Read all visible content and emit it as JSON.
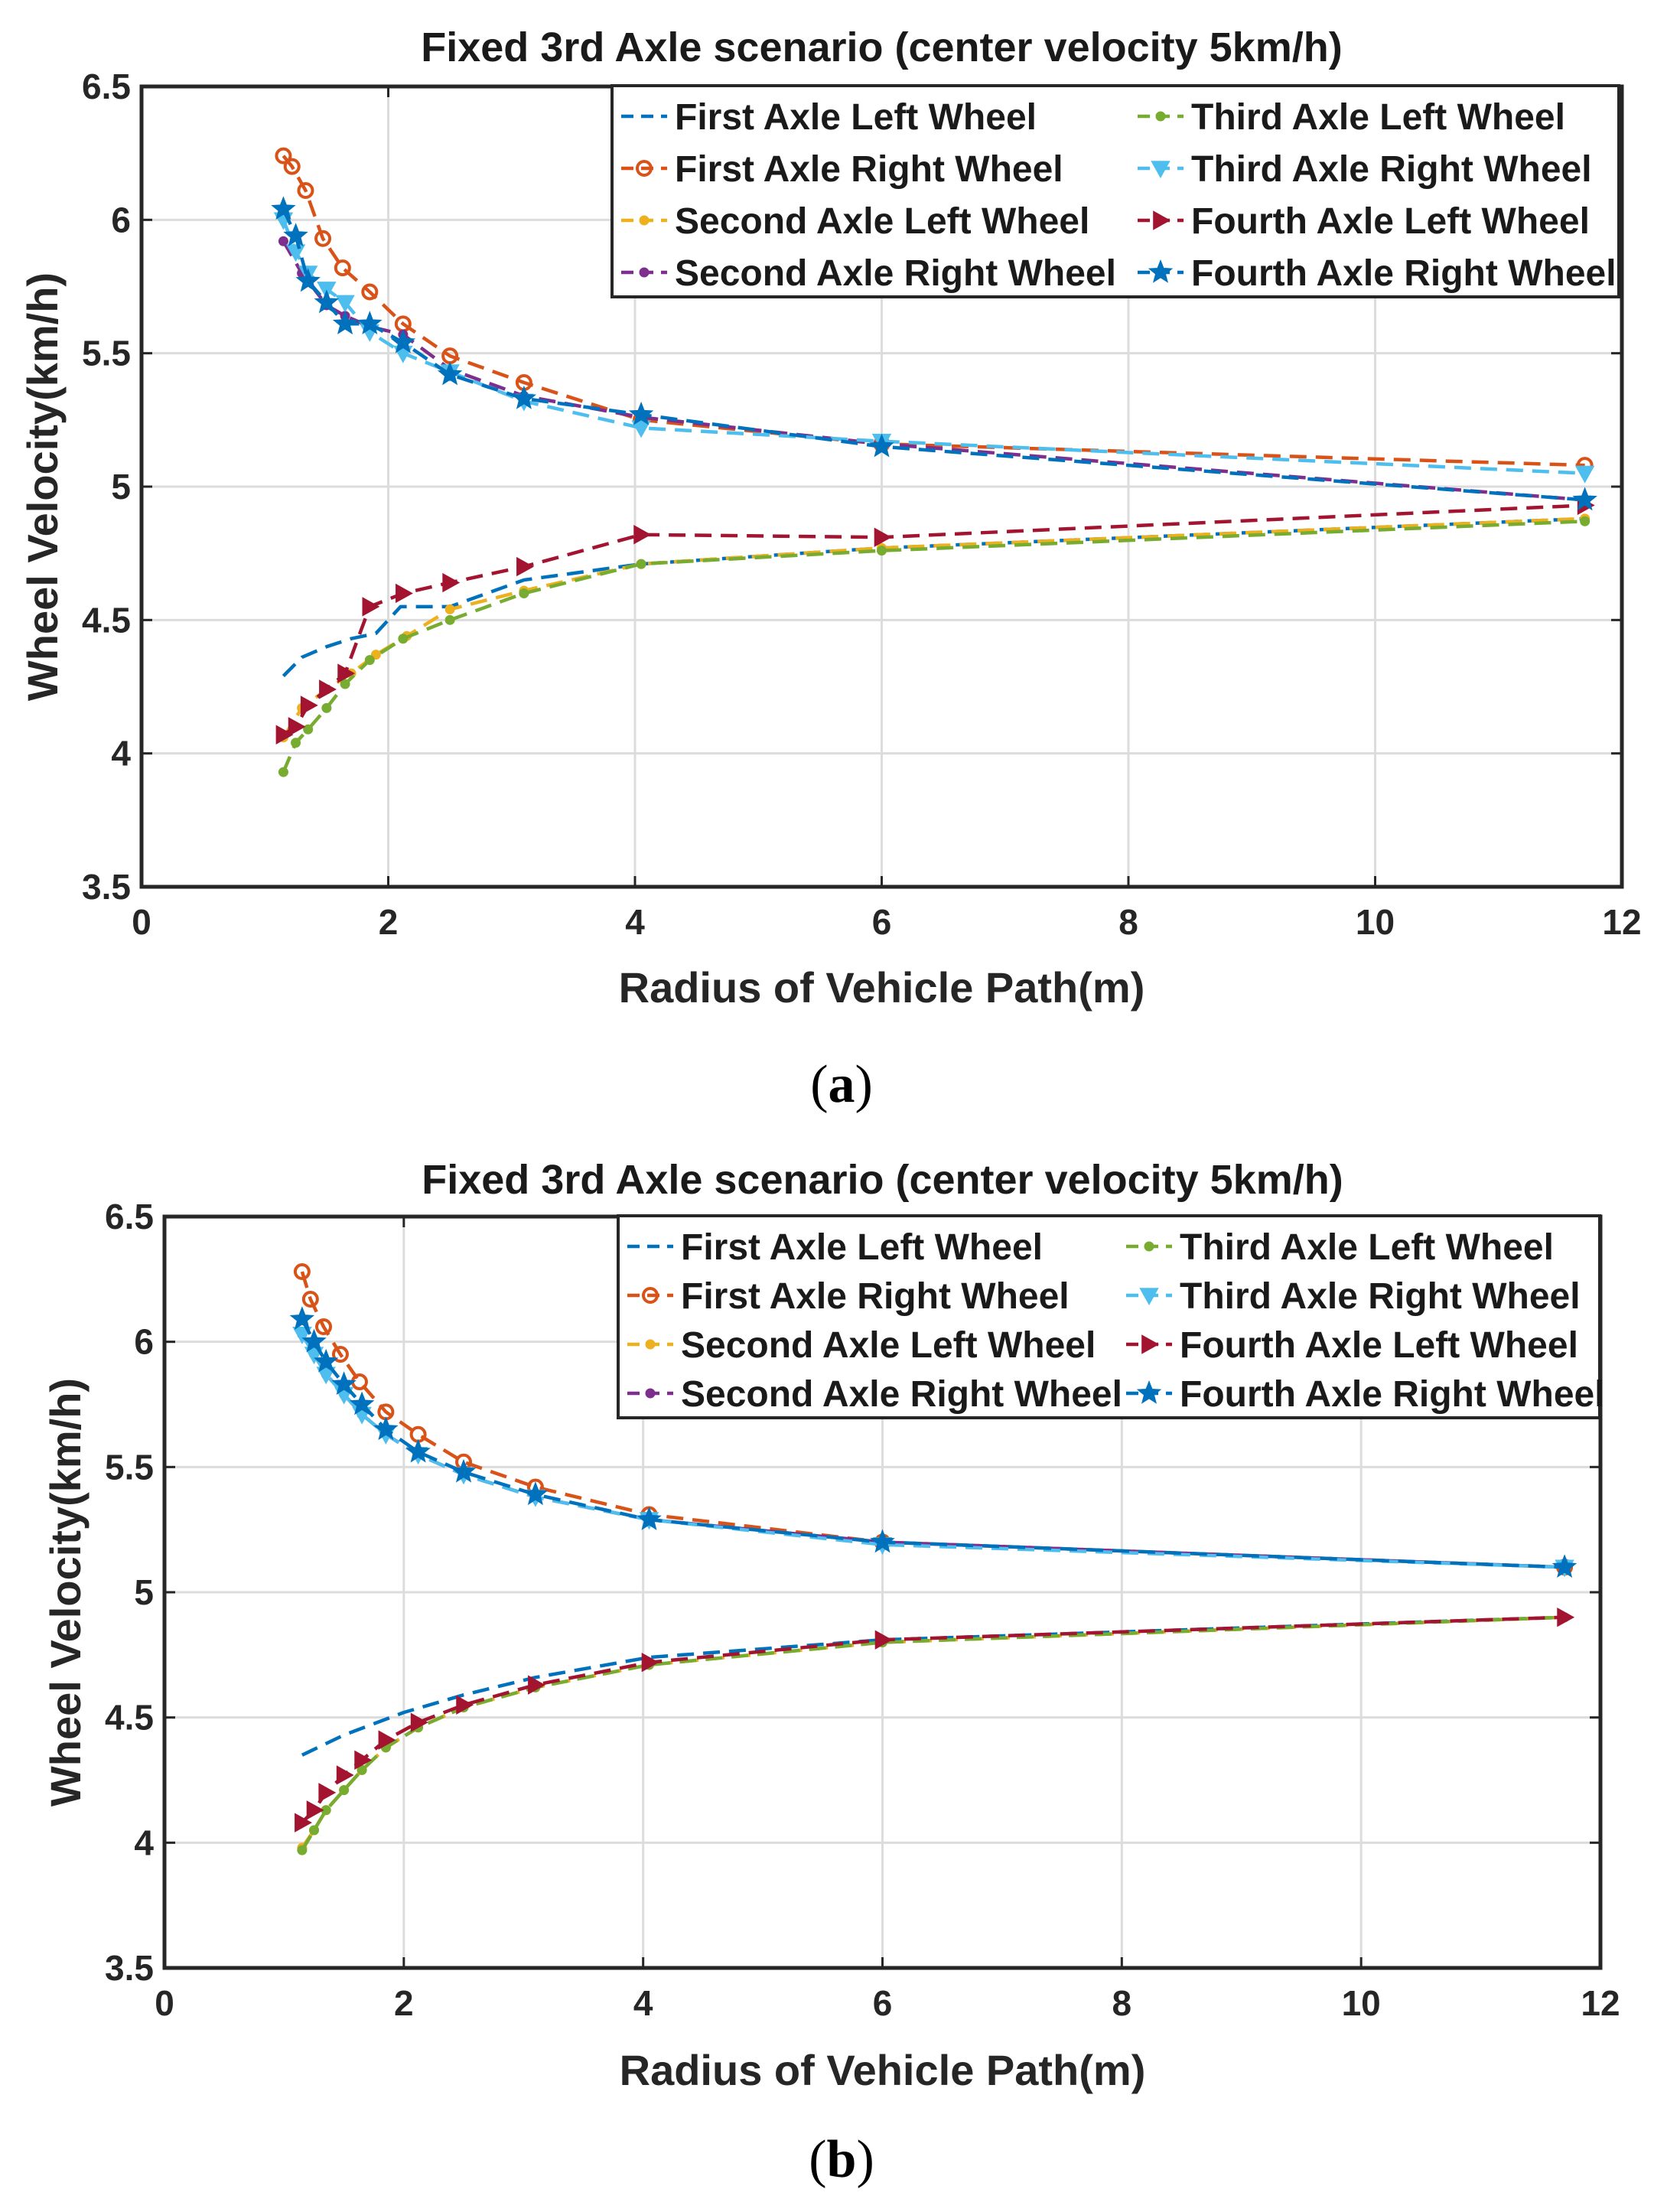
{
  "chart_data": [
    {
      "type": "line",
      "panel_label": "a",
      "title": "Fixed 3rd Axle scenario (center velocity 5km/h)",
      "xlabel": "Radius of Vehicle Path(m)",
      "ylabel": "Wheel Velocity(km/h)",
      "xlim": [
        0,
        12
      ],
      "ylim": [
        3.5,
        6.5
      ],
      "xticks": [
        0,
        2,
        4,
        6,
        8,
        10,
        12
      ],
      "yticks": [
        3.5,
        4,
        4.5,
        5,
        5.5,
        6,
        6.5
      ],
      "xtick_labels": [
        "0",
        "2",
        "4",
        "6",
        "8",
        "10",
        "12"
      ],
      "ytick_labels": [
        "3.5",
        "4",
        "4.5",
        "5",
        "5.5",
        "6",
        "6.5"
      ],
      "grid": true,
      "legend_position": "top-right",
      "series": [
        {
          "name": "First Axle Left Wheel",
          "color": "#0072BD",
          "marker": "none",
          "x": [
            1.15,
            1.3,
            1.5,
            1.7,
            1.9,
            2.1,
            2.5,
            3.1,
            4.05,
            6.0,
            11.7
          ],
          "y": [
            4.29,
            4.36,
            4.4,
            4.43,
            4.45,
            4.55,
            4.55,
            4.65,
            4.71,
            4.77,
            4.88
          ]
        },
        {
          "name": "First Axle Right Wheel",
          "color": "#D95319",
          "marker": "circle",
          "x": [
            1.15,
            1.22,
            1.33,
            1.47,
            1.63,
            1.85,
            2.12,
            2.5,
            3.1,
            4.05,
            6.0,
            11.7
          ],
          "y": [
            6.24,
            6.2,
            6.11,
            5.93,
            5.82,
            5.73,
            5.61,
            5.49,
            5.39,
            5.25,
            5.16,
            5.08
          ]
        },
        {
          "name": "Second Axle Left Wheel",
          "color": "#EDB120",
          "marker": "point",
          "x": [
            1.15,
            1.3,
            1.5,
            1.7,
            1.9,
            2.15,
            2.5,
            3.1,
            4.05,
            6.0,
            11.7
          ],
          "y": [
            4.06,
            4.17,
            4.24,
            4.3,
            4.37,
            4.44,
            4.54,
            4.61,
            4.71,
            4.77,
            4.88
          ]
        },
        {
          "name": "Second Axle Right Wheel",
          "color": "#7E2F8E",
          "marker": "point",
          "x": [
            1.15,
            1.3,
            1.5,
            1.65,
            1.85,
            2.12,
            2.5,
            3.1,
            4.05,
            6.0,
            11.7
          ],
          "y": [
            5.92,
            5.8,
            5.68,
            5.64,
            5.6,
            5.57,
            5.44,
            5.34,
            5.26,
            5.16,
            4.95
          ]
        },
        {
          "name": "Third Axle Left Wheel",
          "color": "#77AC30",
          "marker": "point",
          "x": [
            1.15,
            1.25,
            1.35,
            1.5,
            1.65,
            1.85,
            2.12,
            2.5,
            3.1,
            4.05,
            6.0,
            11.7
          ],
          "y": [
            3.93,
            4.04,
            4.09,
            4.17,
            4.26,
            4.35,
            4.43,
            4.5,
            4.6,
            4.71,
            4.76,
            4.87
          ]
        },
        {
          "name": "Third Axle Right Wheel",
          "color": "#4DBEEE",
          "marker": "triangle-down",
          "x": [
            1.15,
            1.25,
            1.35,
            1.5,
            1.65,
            1.85,
            2.12,
            2.5,
            3.1,
            4.05,
            6.0,
            11.7
          ],
          "y": [
            6.0,
            5.88,
            5.8,
            5.74,
            5.69,
            5.58,
            5.5,
            5.43,
            5.32,
            5.22,
            5.17,
            5.05
          ]
        },
        {
          "name": "Fourth Axle Left Wheel",
          "color": "#A2142F",
          "marker": "triangle-right",
          "x": [
            1.15,
            1.25,
            1.35,
            1.5,
            1.65,
            1.85,
            2.12,
            2.5,
            3.1,
            4.05,
            6.0,
            11.7
          ],
          "y": [
            4.07,
            4.1,
            4.18,
            4.24,
            4.3,
            4.55,
            4.6,
            4.64,
            4.7,
            4.82,
            4.81,
            4.93
          ]
        },
        {
          "name": "Fourth Axle Right Wheel",
          "color": "#0072BD",
          "marker": "star",
          "x": [
            1.15,
            1.25,
            1.35,
            1.5,
            1.65,
            1.85,
            2.12,
            2.5,
            3.1,
            4.05,
            6.0,
            11.7
          ],
          "y": [
            6.04,
            5.94,
            5.77,
            5.69,
            5.61,
            5.61,
            5.54,
            5.42,
            5.33,
            5.27,
            5.15,
            4.95
          ]
        }
      ]
    },
    {
      "type": "line",
      "panel_label": "b",
      "title": "Fixed 3rd Axle scenario (center velocity 5km/h)",
      "xlabel": "Radius of Vehicle Path(m)",
      "ylabel": "Wheel Velocity(km/h)",
      "xlim": [
        0,
        12
      ],
      "ylim": [
        3.5,
        6.5
      ],
      "xticks": [
        0,
        2,
        4,
        6,
        8,
        10,
        12
      ],
      "yticks": [
        3.5,
        4,
        4.5,
        5,
        5.5,
        6,
        6.5
      ],
      "xtick_labels": [
        "0",
        "2",
        "4",
        "6",
        "8",
        "10",
        "12"
      ],
      "ytick_labels": [
        "3.5",
        "4",
        "4.5",
        "5",
        "5.5",
        "6",
        "6.5"
      ],
      "grid": true,
      "legend_position": "top-right",
      "series": [
        {
          "name": "First Axle Left Wheel",
          "color": "#0072BD",
          "marker": "none",
          "x": [
            1.15,
            1.5,
            2.0,
            2.5,
            3.1,
            4.05,
            6.0,
            11.7
          ],
          "y": [
            4.35,
            4.43,
            4.52,
            4.59,
            4.66,
            4.74,
            4.81,
            4.9
          ]
        },
        {
          "name": "First Axle Right Wheel",
          "color": "#D95319",
          "marker": "circle",
          "x": [
            1.15,
            1.22,
            1.33,
            1.47,
            1.63,
            1.85,
            2.12,
            2.5,
            3.1,
            4.05,
            6.0,
            11.7
          ],
          "y": [
            6.28,
            6.17,
            6.06,
            5.95,
            5.84,
            5.72,
            5.63,
            5.52,
            5.42,
            5.31,
            5.2,
            5.1
          ]
        },
        {
          "name": "Second Axle Left Wheel",
          "color": "#EDB120",
          "marker": "point",
          "x": [
            1.15,
            1.25,
            1.35,
            1.5,
            1.65,
            1.85,
            2.12,
            2.5,
            3.1,
            4.05,
            6.0,
            11.7
          ],
          "y": [
            3.98,
            4.05,
            4.13,
            4.21,
            4.29,
            4.38,
            4.46,
            4.54,
            4.62,
            4.71,
            4.8,
            4.9
          ]
        },
        {
          "name": "Second Axle Right Wheel",
          "color": "#7E2F8E",
          "marker": "point",
          "x": [
            1.15,
            1.25,
            1.35,
            1.5,
            1.65,
            1.85,
            2.12,
            2.5,
            3.1,
            4.05,
            6.0,
            11.7
          ],
          "y": [
            6.03,
            5.95,
            5.87,
            5.79,
            5.71,
            5.63,
            5.55,
            5.47,
            5.38,
            5.29,
            5.2,
            5.1
          ]
        },
        {
          "name": "Third Axle Left Wheel",
          "color": "#77AC30",
          "marker": "point",
          "x": [
            1.15,
            1.25,
            1.35,
            1.5,
            1.65,
            1.85,
            2.12,
            2.5,
            3.1,
            4.05,
            6.0,
            11.7
          ],
          "y": [
            3.97,
            4.05,
            4.13,
            4.21,
            4.29,
            4.38,
            4.46,
            4.54,
            4.62,
            4.71,
            4.8,
            4.9
          ]
        },
        {
          "name": "Third Axle Right Wheel",
          "color": "#4DBEEE",
          "marker": "triangle-down",
          "x": [
            1.15,
            1.25,
            1.35,
            1.5,
            1.65,
            1.85,
            2.12,
            2.5,
            3.1,
            4.05,
            6.0,
            11.7
          ],
          "y": [
            6.03,
            5.95,
            5.87,
            5.79,
            5.71,
            5.63,
            5.55,
            5.47,
            5.38,
            5.29,
            5.19,
            5.1
          ]
        },
        {
          "name": "Fourth Axle Left Wheel",
          "color": "#A2142F",
          "marker": "triangle-right",
          "x": [
            1.15,
            1.25,
            1.35,
            1.5,
            1.65,
            1.85,
            2.12,
            2.5,
            3.1,
            4.05,
            6.0,
            11.7
          ],
          "y": [
            4.08,
            4.13,
            4.2,
            4.27,
            4.33,
            4.41,
            4.48,
            4.55,
            4.63,
            4.72,
            4.81,
            4.9
          ]
        },
        {
          "name": "Fourth Axle Right Wheel",
          "color": "#0072BD",
          "marker": "star",
          "x": [
            1.15,
            1.25,
            1.35,
            1.5,
            1.65,
            1.85,
            2.12,
            2.5,
            3.1,
            4.05,
            6.0,
            11.7
          ],
          "y": [
            6.09,
            6.0,
            5.92,
            5.83,
            5.75,
            5.65,
            5.56,
            5.48,
            5.39,
            5.29,
            5.2,
            5.1
          ]
        }
      ]
    }
  ]
}
